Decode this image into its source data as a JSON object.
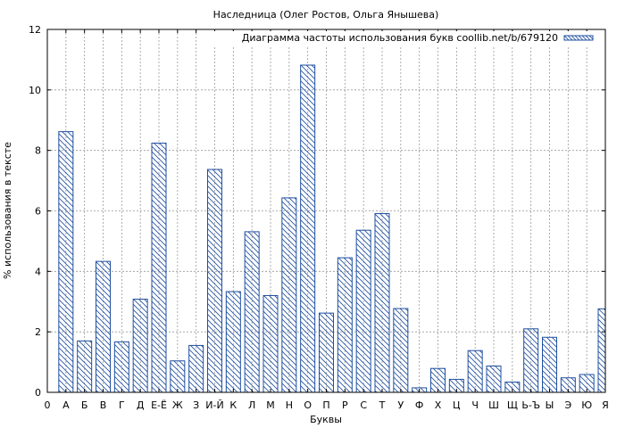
{
  "chart_data": {
    "type": "bar",
    "title": "Наследница (Олег Ростов, Ольга Янышева)",
    "xlabel": "Буквы",
    "ylabel": "% использования в тексте",
    "ylim": [
      0,
      12
    ],
    "yticks": [
      "0",
      "2",
      "4",
      "6",
      "8",
      "10",
      "12"
    ],
    "grid": true,
    "legend_position": "top-right",
    "origin_tick": "0",
    "categories": [
      "А",
      "Б",
      "В",
      "Г",
      "Д",
      "Е-Ё",
      "Ж",
      "З",
      "И-Й",
      "К",
      "Л",
      "М",
      "Н",
      "О",
      "П",
      "Р",
      "С",
      "Т",
      "У",
      "Ф",
      "Х",
      "Ц",
      "Ч",
      "Ш",
      "Щ",
      "Ь-Ъ",
      "Ы",
      "Э",
      "Ю",
      "Я"
    ],
    "series": [
      {
        "name": "Диаграмма частоты использования букв coollib.net/b/679120",
        "values": [
          8.62,
          1.7,
          4.33,
          1.67,
          3.08,
          8.24,
          1.04,
          1.55,
          7.37,
          3.33,
          5.31,
          3.2,
          6.43,
          10.82,
          2.62,
          4.45,
          5.36,
          5.91,
          2.77,
          0.15,
          0.79,
          0.43,
          1.38,
          0.87,
          0.34,
          2.1,
          1.82,
          0.48,
          0.59,
          2.76
        ]
      }
    ],
    "colors": {
      "bar_edge": "#1f4fa0",
      "hatch": "#1f4fa0",
      "grid": "#999999"
    }
  }
}
